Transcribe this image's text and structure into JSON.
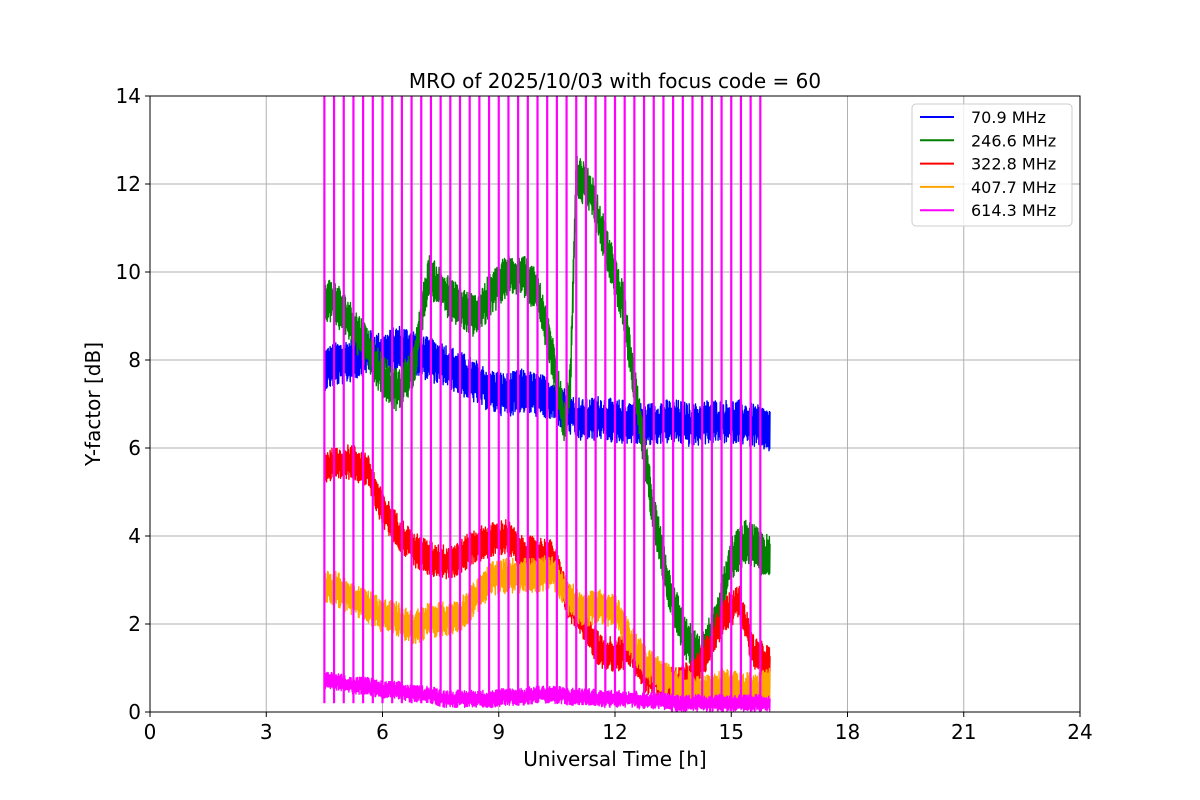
{
  "chart_data": {
    "type": "line",
    "title": "MRO of 2025/10/03 with focus code = 60",
    "xlabel": "Universal Time [h]",
    "ylabel": "Y-factor [dB]",
    "xlim": [
      0,
      24
    ],
    "ylim": [
      0,
      14
    ],
    "xticks": [
      0,
      3,
      6,
      9,
      12,
      15,
      18,
      21,
      24
    ],
    "yticks": [
      0,
      2,
      4,
      6,
      8,
      10,
      12,
      14
    ],
    "grid": true,
    "legend_position": "top-right",
    "series": [
      {
        "name": " 70.9 MHz",
        "color": "#0000ff",
        "x": [
          4.5,
          4.8,
          5.2,
          5.6,
          6.0,
          6.4,
          6.8,
          7.2,
          7.6,
          8.0,
          8.4,
          8.8,
          9.2,
          9.6,
          10.0,
          10.4,
          10.8,
          11.2,
          11.6,
          12.0,
          12.4,
          12.8,
          13.2,
          13.6,
          14.0,
          14.4,
          14.8,
          15.2,
          15.6,
          16.0
        ],
        "values": [
          7.8,
          7.9,
          8.0,
          8.2,
          8.1,
          8.3,
          8.2,
          8.0,
          7.9,
          7.7,
          7.5,
          7.3,
          7.2,
          7.3,
          7.2,
          7.1,
          6.8,
          6.6,
          6.7,
          6.6,
          6.6,
          6.5,
          6.6,
          6.6,
          6.5,
          6.6,
          6.6,
          6.6,
          6.5,
          6.4
        ],
        "band": 0.5
      },
      {
        "name": "246.6 MHz",
        "color": "#008000",
        "x": [
          4.5,
          4.8,
          5.2,
          5.6,
          6.0,
          6.4,
          6.8,
          7.0,
          7.2,
          7.6,
          8.0,
          8.4,
          8.8,
          9.2,
          9.6,
          10.0,
          10.4,
          10.7,
          10.85,
          11.0,
          11.4,
          11.8,
          12.2,
          12.6,
          13.0,
          13.4,
          13.8,
          14.2,
          14.6,
          15.0,
          15.4,
          15.8,
          16.0
        ],
        "values": [
          9.4,
          9.3,
          8.8,
          8.3,
          7.6,
          7.3,
          7.8,
          9.0,
          9.9,
          9.5,
          9.2,
          9.0,
          9.5,
          9.9,
          10.0,
          9.5,
          8.0,
          6.5,
          7.5,
          12.2,
          11.8,
          10.5,
          9.3,
          6.8,
          4.5,
          2.8,
          1.7,
          1.2,
          2.0,
          3.5,
          3.9,
          3.6,
          3.5
        ],
        "band": 0.5
      },
      {
        "name": "322.8 MHz",
        "color": "#ff0000",
        "x": [
          4.5,
          4.8,
          5.2,
          5.6,
          6.0,
          6.4,
          6.8,
          7.2,
          7.6,
          8.0,
          8.4,
          8.8,
          9.2,
          9.6,
          10.0,
          10.4,
          10.8,
          11.2,
          11.6,
          12.0,
          12.4,
          12.8,
          13.2,
          13.6,
          14.0,
          14.4,
          14.8,
          15.2,
          15.6,
          16.0
        ],
        "values": [
          5.6,
          5.6,
          5.7,
          5.5,
          4.6,
          4.1,
          3.7,
          3.5,
          3.4,
          3.5,
          3.8,
          3.9,
          4.0,
          3.6,
          3.6,
          3.5,
          2.5,
          2.0,
          1.4,
          1.3,
          1.4,
          0.8,
          0.7,
          0.6,
          0.8,
          1.4,
          2.2,
          2.5,
          1.3,
          1.1
        ],
        "band": 0.4
      },
      {
        "name": "407.7 MHz",
        "color": "#ffa500",
        "x": [
          4.5,
          4.8,
          5.2,
          5.6,
          6.0,
          6.4,
          6.8,
          7.2,
          7.6,
          8.0,
          8.4,
          8.8,
          9.2,
          9.6,
          10.0,
          10.4,
          10.8,
          11.2,
          11.6,
          12.0,
          12.4,
          12.8,
          13.2,
          13.6,
          14.0,
          14.4,
          14.8,
          15.2,
          15.6,
          16.0
        ],
        "values": [
          2.9,
          2.8,
          2.6,
          2.4,
          2.2,
          2.1,
          1.9,
          2.1,
          2.1,
          2.2,
          2.6,
          3.0,
          3.1,
          3.1,
          3.1,
          3.2,
          2.6,
          2.3,
          2.4,
          2.3,
          1.6,
          1.1,
          0.8,
          0.6,
          0.5,
          0.5,
          0.6,
          0.5,
          0.5,
          0.6
        ],
        "band": 0.4
      },
      {
        "name": "614.3 MHz",
        "color": "#ff00ff",
        "x": [
          4.5,
          4.8,
          5.2,
          5.6,
          6.0,
          6.4,
          6.8,
          7.2,
          7.6,
          8.0,
          8.4,
          8.8,
          9.2,
          9.6,
          10.0,
          10.4,
          10.8,
          11.2,
          11.6,
          12.0,
          12.4,
          12.8,
          13.2,
          13.6,
          14.0,
          14.4,
          14.8,
          15.2,
          15.6,
          16.0
        ],
        "values": [
          0.7,
          0.7,
          0.6,
          0.6,
          0.5,
          0.5,
          0.4,
          0.4,
          0.3,
          0.3,
          0.3,
          0.3,
          0.35,
          0.35,
          0.4,
          0.4,
          0.35,
          0.35,
          0.3,
          0.3,
          0.3,
          0.25,
          0.25,
          0.2,
          0.2,
          0.2,
          0.2,
          0.2,
          0.2,
          0.2
        ],
        "band": 0.2,
        "spike_start": 4.5,
        "spike_end": 15.75,
        "spike_interval": 0.25
      }
    ]
  }
}
